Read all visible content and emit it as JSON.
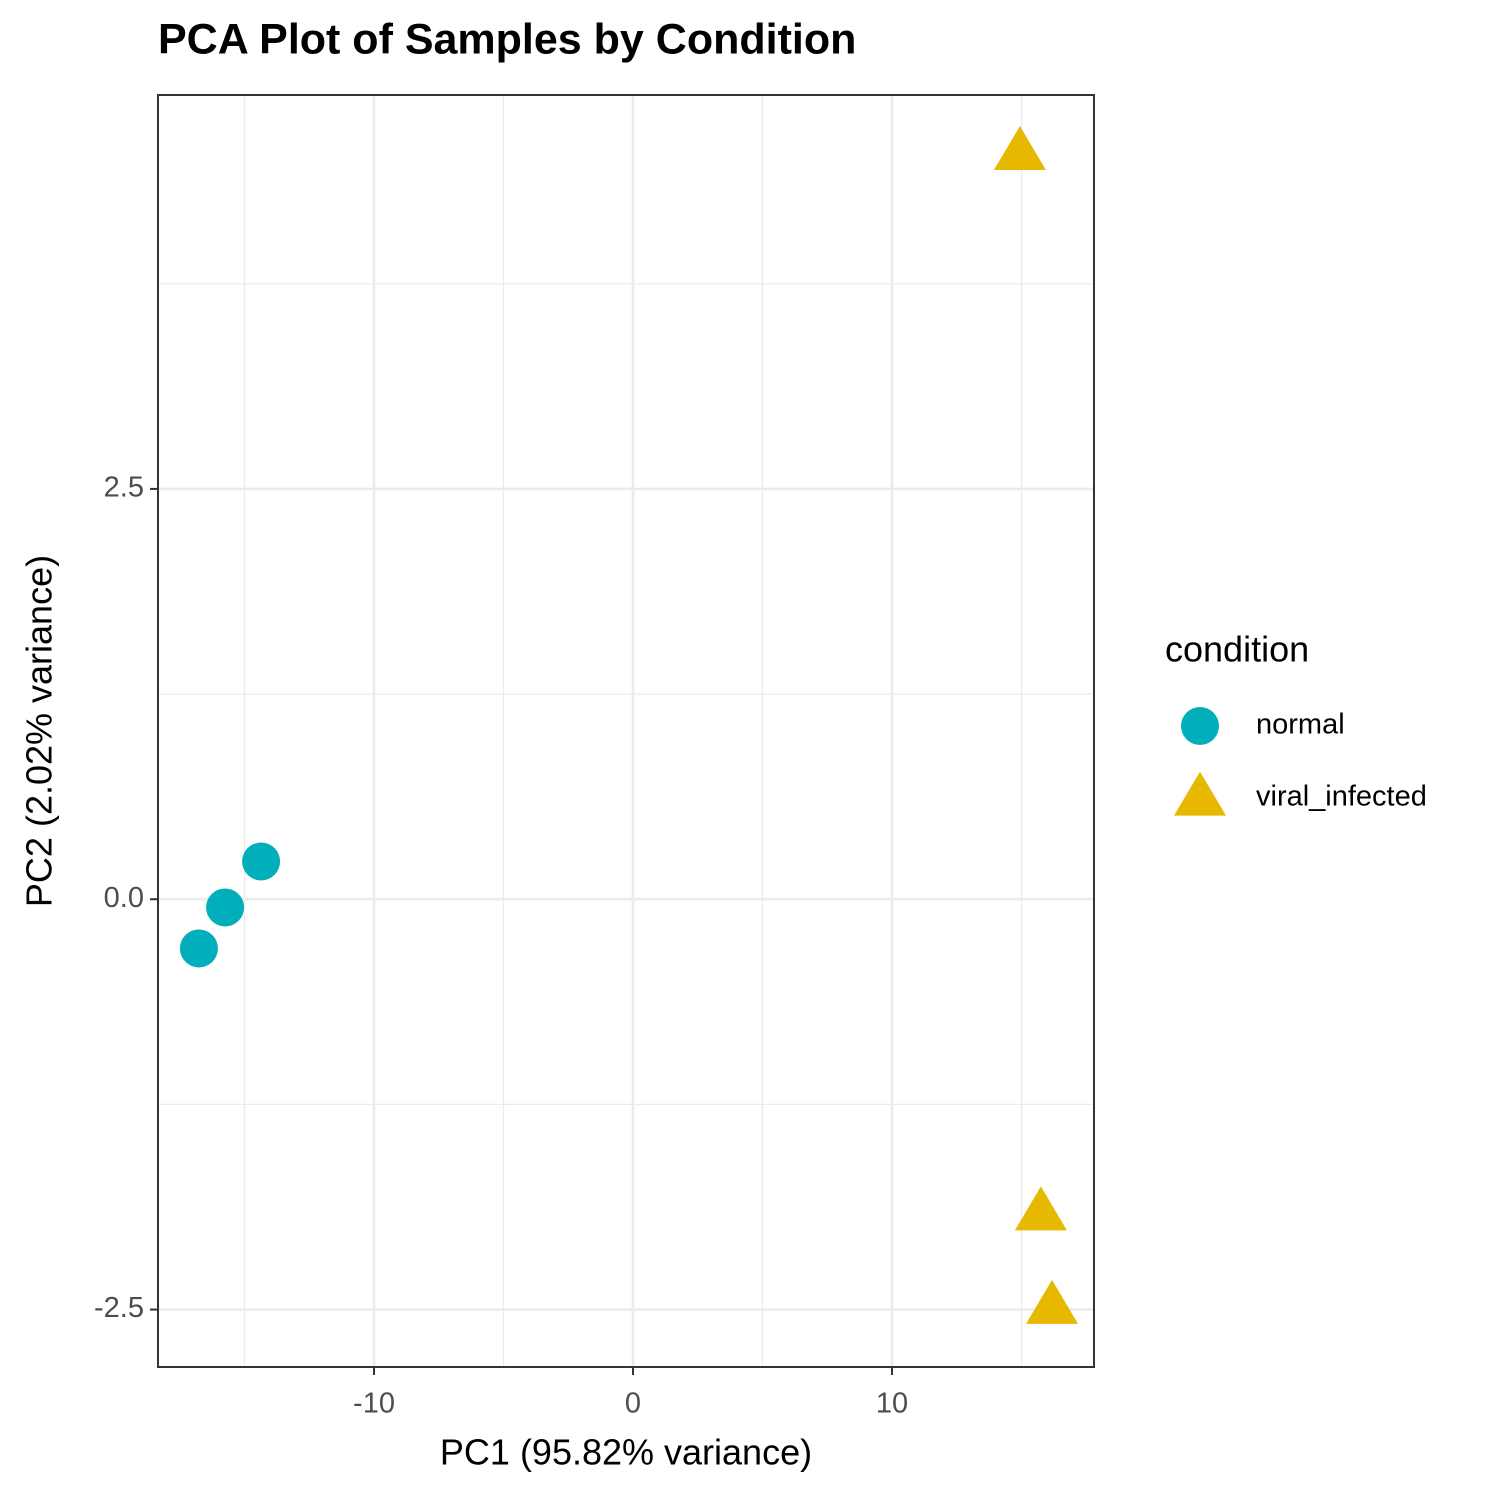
{
  "chart_data": {
    "type": "scatter",
    "title": "PCA Plot of Samples by Condition",
    "x_label": "PC1 (95.82% variance)",
    "y_label": "PC2 (2.02% variance)",
    "legend_title": "condition",
    "series": [
      {
        "name": "normal",
        "color": "#00AFBB",
        "shape": "circle",
        "x": [
          -16.76,
          -15.75,
          -14.36
        ],
        "values": [
          -0.3,
          -0.05,
          0.23
        ]
      },
      {
        "name": "viral_infected",
        "color": "#E7B800",
        "shape": "triangle",
        "x": [
          14.94,
          15.75,
          16.18
        ],
        "values": [
          4.55,
          -1.91,
          -2.48
        ]
      }
    ],
    "xlim": [
      -18.34,
      17.8
    ],
    "ylim": [
      -2.85,
      4.9
    ],
    "xticks": [
      -10,
      0,
      10
    ],
    "yticks": [
      -2.5,
      {
        "value": 0,
        "label": "0.0"
      },
      2.5
    ],
    "x_minor_ticks": [
      -15,
      -5,
      5,
      15
    ],
    "y_minor_ticks": [
      -1.25,
      1.25,
      3.75
    ],
    "grid": true,
    "legend": "right"
  }
}
